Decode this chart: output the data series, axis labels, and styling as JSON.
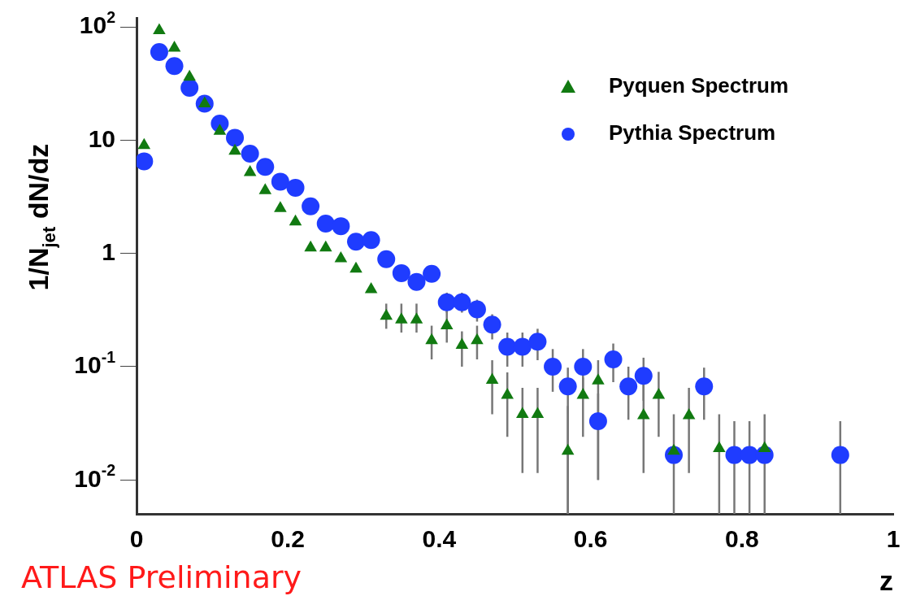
{
  "chart_data": {
    "type": "scatter",
    "xlabel": "z",
    "ylabel": "1/N$_{jet}$ dN/dz",
    "annotations": [
      "ATLAS Preliminary"
    ],
    "xlim": [
      0,
      1
    ],
    "xticks": [
      0,
      0.2,
      0.4,
      0.6,
      0.8,
      1
    ],
    "ylim": [
      0.005,
      120
    ],
    "yticks": [
      {
        "value": 0.01,
        "label": "10$^{-2}$"
      },
      {
        "value": 0.1,
        "label": "10$^{-1}$"
      },
      1,
      10,
      {
        "value": 100,
        "label": "10$^{2}$"
      }
    ],
    "log": "y",
    "grid": false,
    "legend": "top right",
    "series": [
      {
        "name": "Pyquen Spectrum",
        "color": "#117a11",
        "marker": "triangle",
        "x": [
          0.01,
          0.03,
          0.05,
          0.07,
          0.09,
          0.11,
          0.13,
          0.15,
          0.17,
          0.19,
          0.21,
          0.23,
          0.25,
          0.27,
          0.29,
          0.31,
          0.33,
          0.35,
          0.37,
          0.39,
          0.41,
          0.43,
          0.45,
          0.47,
          0.49,
          0.51,
          0.53,
          0.57,
          0.59,
          0.61,
          0.67,
          0.69,
          0.71,
          0.73,
          0.77,
          0.83
        ],
        "values": [
          9,
          93,
          65,
          36,
          21,
          12,
          8,
          5.2,
          3.6,
          2.5,
          1.9,
          1.12,
          1.12,
          0.9,
          0.73,
          0.48,
          0.28,
          0.26,
          0.26,
          0.17,
          0.23,
          0.155,
          0.17,
          0.076,
          0.056,
          0.038,
          0.038,
          0.018,
          0.056,
          0.075,
          0.037,
          0.056,
          0.018,
          0.037,
          0.019,
          0.019
        ],
        "errors": [
          null,
          null,
          null,
          null,
          null,
          null,
          null,
          null,
          null,
          null,
          null,
          null,
          null,
          null,
          null,
          null,
          [
            0.216,
            0.36
          ],
          [
            0.2,
            0.36
          ],
          [
            0.2,
            0.36
          ],
          [
            0.116,
            0.23
          ],
          [
            0.163,
            0.31
          ],
          [
            0.1,
            0.205
          ],
          [
            0.116,
            0.23
          ],
          [
            0.038,
            0.114
          ],
          [
            0.024,
            0.089
          ],
          [
            0.0115,
            0.065
          ],
          [
            0.0115,
            0.065
          ],
          [
            0.005,
            0.045
          ],
          [
            0.024,
            0.08
          ],
          [
            0.01,
            0.114
          ],
          [
            0.0115,
            0.07
          ],
          [
            0.024,
            0.09
          ],
          [
            0.005,
            0.038
          ],
          [
            0.0115,
            0.065
          ],
          [
            0.005,
            0.038
          ],
          [
            0.005,
            0.038
          ]
        ]
      },
      {
        "name": "Pythia Spectrum",
        "color": "#1f3cff",
        "marker": "circle",
        "x": [
          0.01,
          0.03,
          0.05,
          0.07,
          0.09,
          0.11,
          0.13,
          0.15,
          0.17,
          0.19,
          0.21,
          0.23,
          0.25,
          0.27,
          0.29,
          0.31,
          0.33,
          0.35,
          0.37,
          0.39,
          0.41,
          0.43,
          0.45,
          0.47,
          0.49,
          0.51,
          0.53,
          0.55,
          0.57,
          0.59,
          0.61,
          0.63,
          0.65,
          0.67,
          0.71,
          0.75,
          0.79,
          0.81,
          0.83,
          0.93
        ],
        "values": [
          6.5,
          60,
          45,
          29,
          21,
          14,
          10.5,
          7.6,
          5.8,
          4.3,
          3.8,
          2.6,
          1.83,
          1.74,
          1.27,
          1.31,
          0.89,
          0.67,
          0.56,
          0.66,
          0.37,
          0.37,
          0.32,
          0.235,
          0.15,
          0.15,
          0.166,
          0.1,
          0.067,
          0.1,
          0.033,
          0.116,
          0.067,
          0.083,
          0.0166,
          0.067,
          0.0166,
          0.0166,
          0.0166,
          0.0166
        ],
        "errors": [
          null,
          null,
          null,
          null,
          null,
          null,
          null,
          null,
          null,
          null,
          null,
          null,
          null,
          null,
          null,
          null,
          null,
          null,
          null,
          null,
          [
            0.3,
            0.45
          ],
          [
            0.3,
            0.45
          ],
          [
            0.25,
            0.39
          ],
          [
            0.174,
            0.29
          ],
          [
            0.1,
            0.2
          ],
          [
            0.1,
            0.2
          ],
          [
            0.114,
            0.216
          ],
          [
            0.06,
            0.143
          ],
          [
            0.005,
            0.098
          ],
          [
            0.06,
            0.143
          ],
          [
            0.01,
            0.058
          ],
          [
            0.073,
            0.16
          ],
          [
            0.034,
            0.1
          ],
          [
            0.05,
            0.12
          ],
          null,
          [
            0.034,
            0.098
          ],
          [
            0.005,
            0.033
          ],
          [
            0.005,
            0.033
          ],
          null,
          [
            0.005,
            0.033
          ]
        ]
      }
    ]
  }
}
